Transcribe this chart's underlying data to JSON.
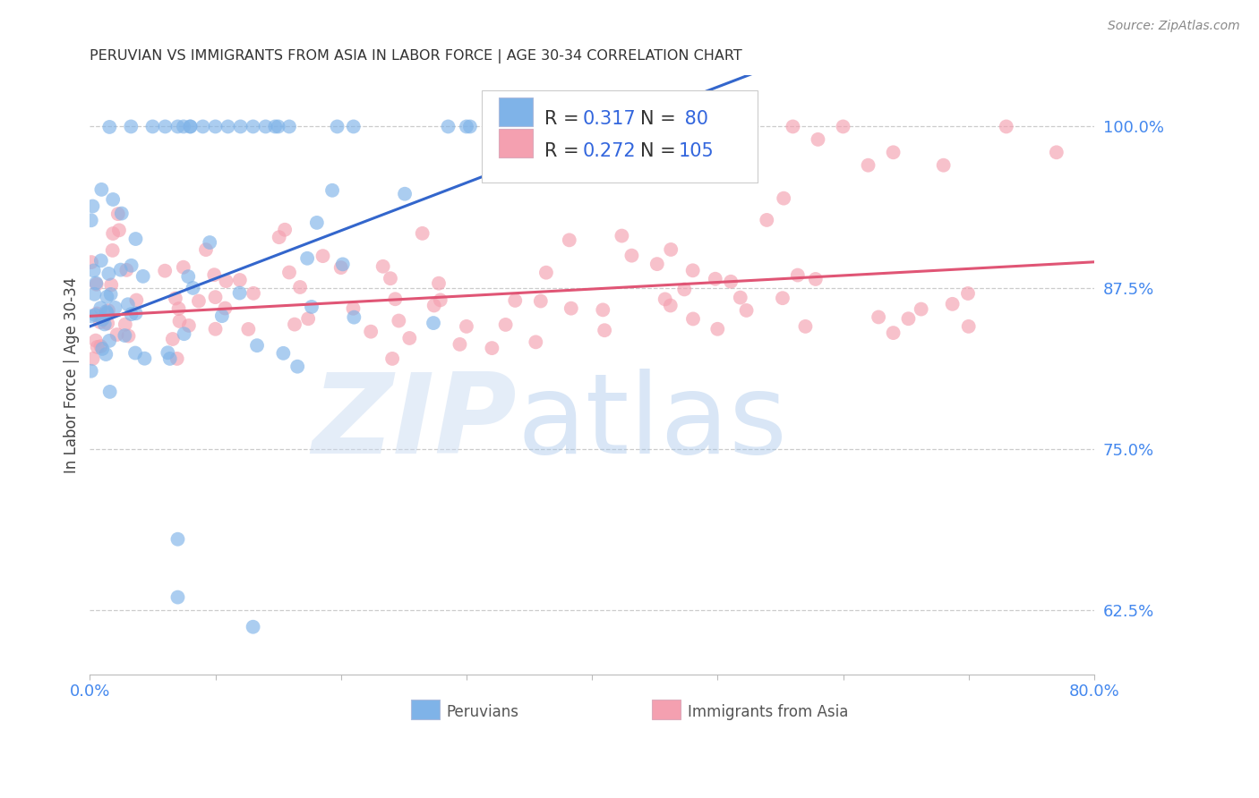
{
  "title": "PERUVIAN VS IMMIGRANTS FROM ASIA IN LABOR FORCE | AGE 30-34 CORRELATION CHART",
  "source": "Source: ZipAtlas.com",
  "ylabel": "In Labor Force | Age 30-34",
  "xlim": [
    0.0,
    0.8
  ],
  "ylim": [
    0.575,
    1.04
  ],
  "yticks": [
    0.625,
    0.75,
    0.875,
    1.0
  ],
  "yticklabels": [
    "62.5%",
    "75.0%",
    "87.5%",
    "100.0%"
  ],
  "blue_R": 0.317,
  "blue_N": 80,
  "pink_R": 0.272,
  "pink_N": 105,
  "blue_color": "#7fb3e8",
  "pink_color": "#f4a0b0",
  "blue_line_color": "#3366cc",
  "pink_line_color": "#e05575",
  "legend_blue_label": "Peruvians",
  "legend_pink_label": "Immigrants from Asia",
  "background_color": "#ffffff",
  "blue_trend_x0": 0.0,
  "blue_trend_y0": 0.845,
  "blue_trend_x1": 0.35,
  "blue_trend_y1": 0.975,
  "pink_trend_x0": 0.0,
  "pink_trend_y0": 0.853,
  "pink_trend_x1": 0.8,
  "pink_trend_y1": 0.895,
  "seed": 12
}
